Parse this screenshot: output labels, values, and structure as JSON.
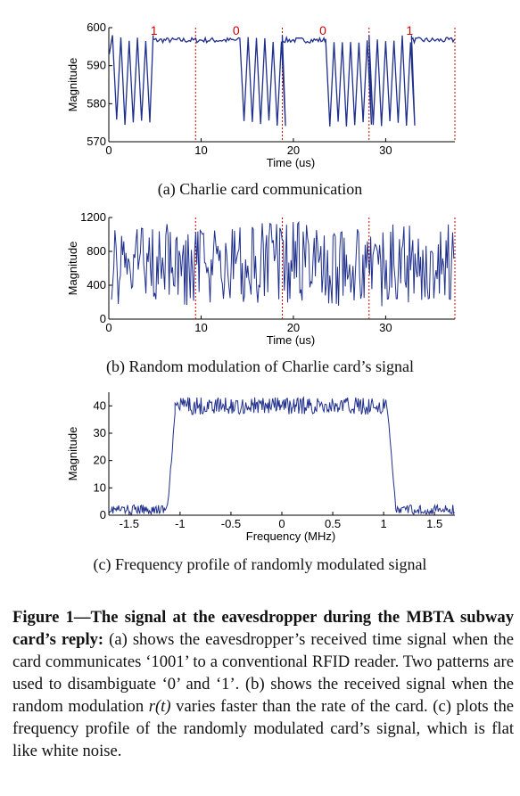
{
  "chart_data": [
    {
      "type": "line",
      "caption": "(a) Charlie card communication",
      "xlabel": "Time (us)",
      "ylabel": "Magnitude",
      "xlim": [
        0,
        37.5
      ],
      "ylim": [
        570,
        600
      ],
      "xticks": [
        "0",
        "10",
        "20",
        "30"
      ],
      "yticks": [
        "570",
        "580",
        "590",
        "600"
      ],
      "bit_boundaries": [
        9.4,
        18.8,
        28.2,
        37.5
      ],
      "bit_labels": [
        "1",
        "0",
        "0",
        "1"
      ],
      "bit_colors": "#cc0000",
      "line_color": "#1f2f8c",
      "segments": [
        {
          "bit": "1",
          "pattern": "oscillating",
          "from": 0.4,
          "to": 4.8
        },
        {
          "bit": "1",
          "pattern": "steady",
          "from": 4.8,
          "to": 9.4
        },
        {
          "bit": "0",
          "pattern": "steady",
          "from": 9.4,
          "to": 14.2
        },
        {
          "bit": "0",
          "pattern": "oscillating",
          "from": 14.2,
          "to": 18.8
        },
        {
          "bit": "0",
          "pattern": "steady",
          "from": 18.8,
          "to": 23.5
        },
        {
          "bit": "0",
          "pattern": "oscillating",
          "from": 23.5,
          "to": 28.2
        },
        {
          "bit": "1",
          "pattern": "oscillating",
          "from": 28.2,
          "to": 32.8
        },
        {
          "bit": "1",
          "pattern": "steady",
          "from": 32.8,
          "to": 37.5
        }
      ],
      "steady_level": 597,
      "oscillation_range": [
        574,
        598
      ]
    },
    {
      "type": "line",
      "caption": "(b) Random modulation of Charlie card’s signal",
      "xlabel": "Time (us)",
      "ylabel": "Magnitude",
      "xlim": [
        0,
        37.5
      ],
      "ylim": [
        0,
        1200
      ],
      "xticks": [
        "0",
        "10",
        "20",
        "30"
      ],
      "yticks": [
        "0",
        "400",
        "800",
        "1200"
      ],
      "bit_boundaries": [
        9.4,
        18.8,
        28.2,
        37.5
      ],
      "line_color": "#1f2f8c",
      "value_range": [
        150,
        1150
      ],
      "mean_level": 650
    },
    {
      "type": "line",
      "caption": "(c) Frequency profile of randomly modulated signal",
      "xlabel": "Frequency (MHz)",
      "ylabel": "Magnitude",
      "xlim": [
        -1.7,
        1.7
      ],
      "ylim": [
        0,
        45
      ],
      "xticks": [
        "-1.5",
        "-1",
        "-0.5",
        "0",
        "0.5",
        "1",
        "1.5"
      ],
      "xtick_values": [
        -1.5,
        -1,
        -0.5,
        0,
        0.5,
        1,
        1.5
      ],
      "yticks": [
        "0",
        "10",
        "20",
        "30",
        "40"
      ],
      "line_color": "#1f2f8c",
      "profile": [
        {
          "from": -1.7,
          "to": -1.12,
          "level": 2
        },
        {
          "from": -1.12,
          "to": -1.05,
          "level": "rise",
          "end_level": 37
        },
        {
          "from": -1.05,
          "to": 1.03,
          "level": 40
        },
        {
          "from": 1.03,
          "to": 1.12,
          "level": "fall",
          "end_level": 2
        },
        {
          "from": 1.12,
          "to": 1.7,
          "level": 2
        }
      ]
    }
  ],
  "caption": {
    "label": "Figure 1—The signal at the eavesdropper during the MBTA subway card’s reply:",
    "text_1": " (a) shows the eavesdropper’s received time signal when the card communicates ‘1001’ to a conventional RFID reader. Two patterns are used to disambiguate ‘0’ and ‘1’. (b) shows the received signal when the random modulation ",
    "symbol": "r(t)",
    "text_2": " varies faster than the rate of the card. (c) plots the frequency profile of the randomly modulated card’s signal, which is flat like white noise."
  }
}
